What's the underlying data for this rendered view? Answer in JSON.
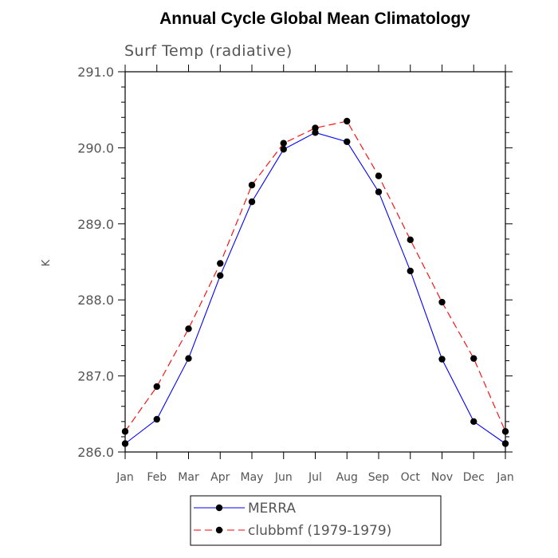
{
  "chart_data": {
    "type": "line",
    "title": "Annual Cycle Global Mean Climatology",
    "subtitle": "Surf Temp (radiative)",
    "ylabel": "K",
    "xlabel": "",
    "categories": [
      "Jan",
      "Feb",
      "Mar",
      "Apr",
      "May",
      "Jun",
      "Jul",
      "Aug",
      "Sep",
      "Oct",
      "Nov",
      "Dec",
      "Jan"
    ],
    "ylim": [
      286.0,
      291.0
    ],
    "yticks": [
      "286.0",
      "287.0",
      "288.0",
      "289.0",
      "290.0",
      "291.0"
    ],
    "series": [
      {
        "name": "MERRA",
        "color": "#0000ff",
        "dash": "solid",
        "values": [
          286.11,
          286.43,
          287.23,
          288.32,
          289.29,
          289.98,
          290.2,
          290.08,
          289.42,
          288.38,
          287.22,
          286.4,
          286.11
        ]
      },
      {
        "name": "clubbmf (1979-1979)",
        "color": "#ff0000",
        "dash": "dashed",
        "values": [
          286.27,
          286.86,
          287.62,
          288.48,
          289.51,
          290.06,
          290.26,
          290.35,
          289.63,
          288.79,
          287.97,
          287.23,
          286.27
        ]
      }
    ],
    "legend_position": "bottom-center",
    "grid": false
  }
}
